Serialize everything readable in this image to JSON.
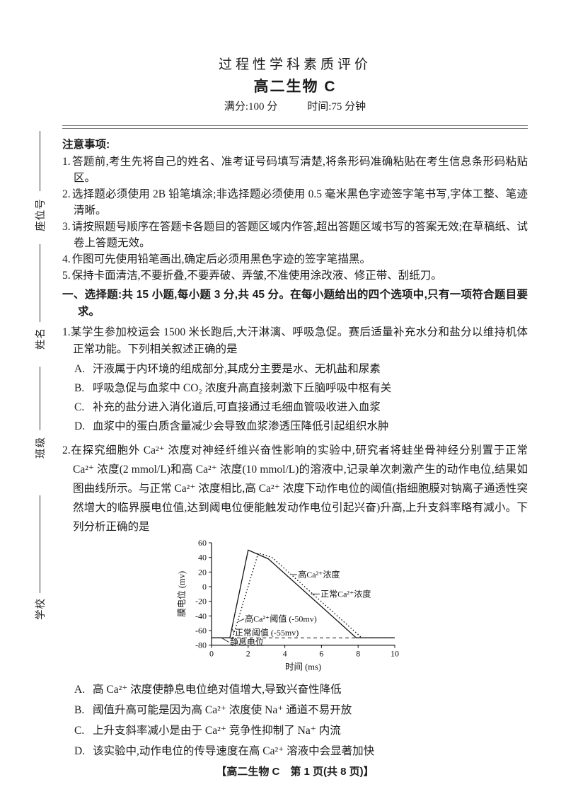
{
  "header": {
    "eval_title": "过程性学科素质评价",
    "paper_title": "高二生物 C",
    "full_score": "满分:100 分",
    "duration": "时间:75 分钟"
  },
  "margin_labels": [
    "座位号",
    "姓名",
    "班级",
    "学校"
  ],
  "notice": {
    "title": "注意事项:",
    "items": [
      {
        "num": "1.",
        "text": "答题前,考生先将自己的姓名、准考证号码填写清楚,将条形码准确粘贴在考生信息条形码粘贴区。"
      },
      {
        "num": "2.",
        "text": "选择题必须使用 2B 铅笔填涂;非选择题必须使用 0.5 毫米黑色字迹签字笔书写,字体工整、笔迹清晰。"
      },
      {
        "num": "3.",
        "text": "请按照题号顺序在答题卡各题目的答题区域内作答,超出答题区域书写的答案无效;在草稿纸、试卷上答题无效。"
      },
      {
        "num": "4.",
        "text": "作图可先使用铅笔画出,确定后必须用黑色字迹的签字笔描黑。"
      },
      {
        "num": "5.",
        "text": "保持卡面清洁,不要折叠,不要弄破、弄皱,不准使用涂改液、修正带、刮纸刀。"
      }
    ]
  },
  "section_heading": "一、选择题:共 15 小题,每小题 3 分,共 45 分。在每小题给出的四个选项中,只有一项符合题目要求。",
  "questions": [
    {
      "num": "1.",
      "stem": "某学生参加校运会 1500 米长跑后,大汗淋漓、呼吸急促。赛后适量补充水分和盐分以维持机体正常功能。下列相关叙述正确的是",
      "options": [
        {
          "label": "A.",
          "text": "汗液属于内环境的组成部分,其成分主要是水、无机盐和尿素"
        },
        {
          "label": "B.",
          "text": "呼吸急促与血浆中 CO₂ 浓度升高直接刺激下丘脑呼吸中枢有关"
        },
        {
          "label": "C.",
          "text": "补充的盐分进入消化道后,可直接通过毛细血管吸收进入血浆"
        },
        {
          "label": "D.",
          "text": "血浆中的蛋白质含量减少会导致血浆渗透压降低引起组织水肿"
        }
      ]
    },
    {
      "num": "2.",
      "stem": "在探究细胞外 Ca²⁺ 浓度对神经纤维兴奋性影响的实验中,研究者将蛙坐骨神经分别置于正常 Ca²⁺ 浓度(2 mmol/L)和高 Ca²⁺ 浓度(10 mmol/L)的溶液中,记录单次刺激产生的动作电位,结果如图曲线所示。与正常 Ca²⁺ 浓度相比,高 Ca²⁺ 浓度下动作电位的阈值(指细胞膜对钠离子通透性突然增大的临界膜电位值,达到阈电位便能触发动作电位引起兴奋)升高,上升支斜率略有减小。下列分析正确的是",
      "options": [
        {
          "label": "A.",
          "text": "高 Ca²⁺ 浓度使静息电位绝对值增大,导致兴奋性降低"
        },
        {
          "label": "B.",
          "text": "阈值升高可能是因为高 Ca²⁺ 浓度使 Na⁺ 通道不易开放"
        },
        {
          "label": "C.",
          "text": "上升支斜率减小是由于 Ca²⁺ 竞争性抑制了 Na⁺ 内流"
        },
        {
          "label": "D.",
          "text": "该实验中,动作电位的传导速度在高 Ca²⁺ 溶液中会显著加快"
        }
      ]
    }
  ],
  "footer": {
    "page_label": "【高二生物 C　第 1 页(共 8 页)】"
  },
  "chart_data": {
    "type": "line",
    "title": "",
    "xlabel": "时间 (ms)",
    "ylabel": "膜电位 (mv)",
    "xlim": [
      0,
      10
    ],
    "ylim": [
      -80,
      60
    ],
    "xticks": [
      0,
      2,
      4,
      6,
      8,
      10
    ],
    "yticks": [
      60,
      40,
      20,
      0,
      -20,
      -40,
      -60,
      -80
    ],
    "grid": false,
    "series": [
      {
        "name": "正常Ca²⁺浓度",
        "line_style": "solid",
        "points": [
          [
            0,
            -70
          ],
          [
            1,
            -70
          ],
          [
            2,
            50
          ],
          [
            3.1,
            38
          ],
          [
            7.9,
            -70
          ],
          [
            10,
            -70
          ]
        ]
      },
      {
        "name": "高Ca²⁺浓度",
        "line_style": "dotted",
        "points": [
          [
            1.15,
            -70
          ],
          [
            2.55,
            46
          ],
          [
            3.3,
            40
          ],
          [
            8.2,
            -70
          ]
        ]
      }
    ],
    "reference_line": {
      "label": "静息电位",
      "y": -70,
      "line_style": "dashed"
    },
    "annotations": [
      {
        "text": "高Ca²⁺浓度",
        "x": 4.72,
        "y": 16.5,
        "leader": [
          [
            4.38,
            16.5
          ],
          [
            4.66,
            16.5
          ]
        ]
      },
      {
        "text": "正常Ca²⁺浓度",
        "x": 5.95,
        "y": -10,
        "leader": [
          [
            5.42,
            -10
          ],
          [
            5.9,
            -10
          ]
        ]
      },
      {
        "text": "高Ca²⁺阈值 (-50mv)",
        "x": 1.82,
        "y": -44,
        "leader": [
          [
            1.45,
            -48
          ],
          [
            1.78,
            -44
          ]
        ]
      },
      {
        "text": "正常阈值 (-55mv)",
        "x": 1.27,
        "y": -63,
        "leader": [
          [
            1.1,
            -57
          ],
          [
            1.23,
            -63
          ]
        ]
      },
      {
        "text": "静息电位",
        "x": 1.0,
        "y": -76,
        "leader": [
          [
            0.55,
            -70
          ],
          [
            0.95,
            -76
          ]
        ]
      }
    ]
  }
}
